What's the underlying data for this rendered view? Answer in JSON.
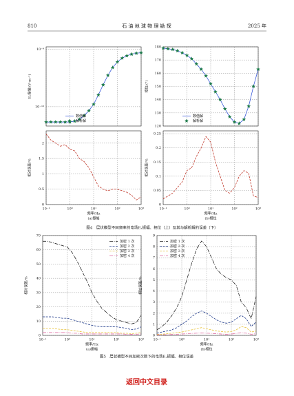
{
  "header": {
    "page": "810",
    "journal": "石 油 地 球 物 理 勘 探",
    "year": "2025 年"
  },
  "chart_data": [
    {
      "type": "line",
      "ylabel": "Eₓ振幅/(V·m⁻¹)",
      "xlog": true,
      "ylog": true,
      "grid": true,
      "legend": "lower left",
      "x": [
        0.1,
        0.158,
        0.251,
        0.398,
        0.631,
        1,
        1.585,
        2.512,
        3.981,
        6.31,
        10,
        15.85,
        25.12,
        39.81,
        63.1,
        100,
        158.5,
        251.2,
        398.1,
        631,
        1000
      ],
      "xlim": [
        0.1,
        1000
      ],
      "xticks": [
        0.1,
        1,
        10,
        100,
        1000
      ],
      "ylim": [
        4.6e-11,
        1.1e-09
      ],
      "yticks": [
        {
          "value": 1e-10,
          "label": "10⁻¹⁰"
        },
        {
          "value": 1e-09,
          "label": "10⁻⁹"
        }
      ],
      "series": [
        {
          "name": "数值解",
          "color": "#3b5bdb",
          "linestyle": "solid",
          "marker": "none",
          "values": [
            5.4e-11,
            5.4e-11,
            5.4e-11,
            5.4e-11,
            5.4e-11,
            5.4e-11,
            5.6e-11,
            6e-11,
            7e-11,
            8.5e-11,
            1.1e-10,
            1.6e-10,
            2.4e-10,
            3.5e-10,
            4.8e-10,
            6e-10,
            7e-10,
            7.7e-10,
            8.2e-10,
            8.5e-10,
            8.7e-10
          ]
        },
        {
          "name": "解析解",
          "color": "#1e7b4a",
          "linestyle": "none",
          "marker": "star",
          "values": [
            5.4e-11,
            5.4e-11,
            5.4e-11,
            5.4e-11,
            5.4e-11,
            5.4e-11,
            5.6e-11,
            6e-11,
            7e-11,
            8.5e-11,
            1.1e-10,
            1.6e-10,
            2.4e-10,
            3.5e-10,
            4.8e-10,
            6e-10,
            7e-10,
            7.7e-10,
            8.2e-10,
            8.5e-10,
            8.7e-10
          ]
        }
      ]
    },
    {
      "type": "line",
      "ylabel": "相位/(°)",
      "xlog": true,
      "grid": true,
      "legend": "lower left",
      "x": [
        0.1,
        0.158,
        0.251,
        0.398,
        0.631,
        1,
        1.585,
        2.512,
        3.981,
        6.31,
        10,
        15.85,
        25.12,
        39.81,
        63.1,
        100,
        158.5,
        251.2,
        398.1,
        631,
        1000
      ],
      "xlim": [
        0.1,
        1000
      ],
      "xticks": [
        0.1,
        1,
        10,
        100,
        1000
      ],
      "ylim": [
        120,
        180
      ],
      "yticks": [
        120,
        130,
        140,
        150,
        160,
        170,
        180
      ],
      "series": [
        {
          "name": "数值解",
          "color": "#3b5bdb",
          "linestyle": "solid",
          "marker": "none",
          "values": [
            179,
            178.5,
            178,
            177,
            175.5,
            173.5,
            171,
            167,
            163,
            158,
            152,
            146,
            140,
            133,
            127,
            123,
            122,
            125,
            135,
            150,
            163
          ]
        },
        {
          "name": "解析解",
          "color": "#1e7b4a",
          "linestyle": "none",
          "marker": "star",
          "values": [
            179,
            178.5,
            178,
            177,
            175.5,
            173.5,
            171,
            167,
            163,
            158,
            152,
            146,
            140,
            133,
            127,
            123,
            122,
            125,
            135,
            150,
            163
          ]
        }
      ]
    },
    {
      "type": "line",
      "ylabel": "相对误差/%",
      "xlabel": "频率/Hz",
      "xlog": true,
      "grid": true,
      "x": [
        0.1,
        0.158,
        0.251,
        0.398,
        0.631,
        1,
        1.585,
        2.512,
        3.981,
        6.31,
        10,
        15.85,
        25.12,
        39.81,
        63.1,
        100,
        158.5,
        251.2,
        398.1,
        631,
        1000
      ],
      "xlim": [
        0.1,
        1000
      ],
      "xticks": [
        {
          "value": 0.1,
          "label": "10⁻¹"
        },
        {
          "value": 1,
          "label": "10⁰"
        },
        {
          "value": 10,
          "label": "10¹"
        },
        {
          "value": 100,
          "label": "10²"
        },
        {
          "value": 1000,
          "label": "10³"
        }
      ],
      "ylim": [
        0,
        2.4
      ],
      "yticks": [
        0,
        0.5,
        1,
        1.5,
        2
      ],
      "color": "#c0392b",
      "linestyle": "dashed",
      "values": [
        2.3,
        2.1,
        2.0,
        1.9,
        1.95,
        1.8,
        1.75,
        1.5,
        1.4,
        1.2,
        0.9,
        0.6,
        0.5,
        0.45,
        0.5,
        0.5,
        0.45,
        0.4,
        0.3,
        0.15,
        0.25
      ]
    },
    {
      "type": "line",
      "ylabel": "相对误差/%",
      "xlabel": "频率/Hz",
      "xlog": true,
      "grid": true,
      "x": [
        0.1,
        0.158,
        0.251,
        0.398,
        0.631,
        1,
        1.585,
        2.512,
        3.981,
        6.31,
        10,
        15.85,
        25.12,
        39.81,
        63.1,
        100,
        158.5,
        251.2,
        398.1,
        631,
        1000
      ],
      "xlim": [
        0.1,
        1000
      ],
      "xticks": [
        {
          "value": 0.1,
          "label": "10⁻¹"
        },
        {
          "value": 1,
          "label": "10⁰"
        },
        {
          "value": 10,
          "label": "10¹"
        },
        {
          "value": 100,
          "label": "10²"
        },
        {
          "value": 1000,
          "label": "10³"
        }
      ],
      "ylim": [
        0,
        0.26
      ],
      "yticks": [
        0,
        0.05,
        0.1,
        0.15,
        0.2,
        0.25
      ],
      "color": "#c0392b",
      "linestyle": "dashed",
      "values": [
        0.02,
        0.03,
        0.04,
        0.06,
        0.08,
        0.12,
        0.13,
        0.17,
        0.2,
        0.24,
        0.22,
        0.15,
        0.1,
        0.05,
        0.04,
        0.06,
        0.1,
        0.12,
        0.11,
        0.03,
        0.025
      ]
    },
    {
      "type": "line",
      "ylabel": "相对误差/%",
      "xlabel": "频率/Hz",
      "xlog": true,
      "grid": true,
      "legend": "upper right",
      "x": [
        0.1,
        0.158,
        0.251,
        0.398,
        0.631,
        1,
        1.585,
        2.512,
        3.981,
        6.31,
        10,
        15.85,
        25.12,
        39.81,
        63.1,
        100,
        158.5,
        251.2,
        398.1,
        631,
        1000
      ],
      "xlim": [
        0.1,
        1000
      ],
      "xticks": [
        {
          "value": 0.1,
          "label": "10⁻¹"
        },
        {
          "value": 1,
          "label": "10⁰"
        },
        {
          "value": 10,
          "label": "10¹"
        },
        {
          "value": 100,
          "label": "10²"
        },
        {
          "value": 1000,
          "label": "10³"
        }
      ],
      "ylim": [
        0,
        70
      ],
      "yticks": [
        0,
        10,
        20,
        30,
        40,
        50,
        60,
        70
      ],
      "series": [
        {
          "name": "加密 1 次",
          "color": "#222222",
          "linestyle": "dashdot",
          "values": [
            66,
            66,
            65,
            64,
            63,
            62,
            58,
            52,
            45,
            38,
            30,
            24,
            19,
            16,
            13,
            11,
            10,
            9,
            8,
            9,
            14
          ]
        },
        {
          "name": "加密 2 次",
          "color": "#1f3a8a",
          "linestyle": "dashed",
          "values": [
            13,
            13,
            13,
            12.5,
            12,
            12,
            11,
            10,
            9,
            8,
            7,
            6.5,
            6,
            6,
            6,
            6,
            5.5,
            5,
            4,
            4.5,
            6
          ]
        },
        {
          "name": "加密 3 次",
          "color": "#e8c23a",
          "linestyle": "dashed",
          "values": [
            5,
            5,
            5,
            4.5,
            4,
            4,
            3.5,
            3,
            2.5,
            2,
            2,
            2,
            2,
            2,
            2,
            2,
            1.5,
            1.5,
            1.2,
            1.5,
            2
          ]
        },
        {
          "name": "加密 4 次",
          "color": "#e06aa0",
          "linestyle": "dashdot",
          "values": [
            2,
            2,
            2,
            2,
            2,
            2,
            1.5,
            1.5,
            1,
            1,
            1,
            1,
            1,
            1,
            1,
            1,
            1,
            0.8,
            0.7,
            0.8,
            1
          ]
        }
      ]
    },
    {
      "type": "line",
      "ylabel": "相位误差/%",
      "xlabel": "频率/Hz",
      "xlog": true,
      "grid": true,
      "legend": "upper left",
      "x": [
        0.1,
        0.158,
        0.251,
        0.398,
        0.631,
        1,
        1.585,
        2.512,
        3.981,
        6.31,
        10,
        15.85,
        25.12,
        39.81,
        63.1,
        100,
        158.5,
        251.2,
        398.1,
        631,
        1000
      ],
      "xlim": [
        0.1,
        1000
      ],
      "xticks": [
        {
          "value": 0.1,
          "label": "10⁻¹"
        },
        {
          "value": 1,
          "label": "10⁰"
        },
        {
          "value": 10,
          "label": "10¹"
        },
        {
          "value": 100,
          "label": "10²"
        },
        {
          "value": 1000,
          "label": "10³"
        }
      ],
      "ylim": [
        0,
        9
      ],
      "yticks": [
        0,
        1,
        2,
        3,
        4,
        5,
        6,
        7,
        8,
        9
      ],
      "series": [
        {
          "name": "加密 1 次",
          "color": "#222222",
          "linestyle": "dashdot",
          "values": [
            0.5,
            0.8,
            1.2,
            1.8,
            2.5,
            3.5,
            5,
            6.5,
            7.8,
            8.5,
            8,
            7,
            6,
            5.5,
            5.2,
            5,
            4.5,
            3,
            2.5,
            1.5,
            3.5
          ]
        },
        {
          "name": "加密 2 次",
          "color": "#1f3a8a",
          "linestyle": "dashed",
          "values": [
            0.2,
            0.3,
            0.4,
            0.5,
            0.7,
            1,
            1.3,
            1.7,
            2,
            2.2,
            2,
            1.7,
            1.4,
            1.2,
            1.1,
            1.2,
            1.5,
            1.8,
            1.5,
            0.8,
            1.2
          ]
        },
        {
          "name": "加密 3 次",
          "color": "#e8c23a",
          "linestyle": "dashed",
          "values": [
            0.1,
            0.1,
            0.15,
            0.2,
            0.25,
            0.3,
            0.4,
            0.5,
            0.6,
            0.7,
            0.6,
            0.5,
            0.4,
            0.35,
            0.3,
            0.35,
            0.5,
            0.8,
            0.7,
            0.3,
            0.4
          ]
        },
        {
          "name": "加密 4 次",
          "color": "#e06aa0",
          "linestyle": "dashdot",
          "values": [
            0.05,
            0.05,
            0.06,
            0.08,
            0.1,
            0.12,
            0.15,
            0.18,
            0.2,
            0.22,
            0.2,
            0.18,
            0.15,
            0.12,
            0.1,
            0.12,
            0.18,
            0.25,
            0.2,
            0.1,
            0.15
          ]
        }
      ]
    }
  ],
  "figure4": {
    "sublabels": [
      "(a)振幅",
      "(b)相位"
    ],
    "caption": "图4　层状模型不同频率的电场Eₓ振幅、相位（上）及其与解析解的误差（下）"
  },
  "figure5": {
    "sublabels": [
      "(a)振幅",
      "(b)相位"
    ],
    "caption": "图5　层状模型不同加密次数下的电场Eₓ振幅、相位误差"
  },
  "footer": "返回中文目录"
}
